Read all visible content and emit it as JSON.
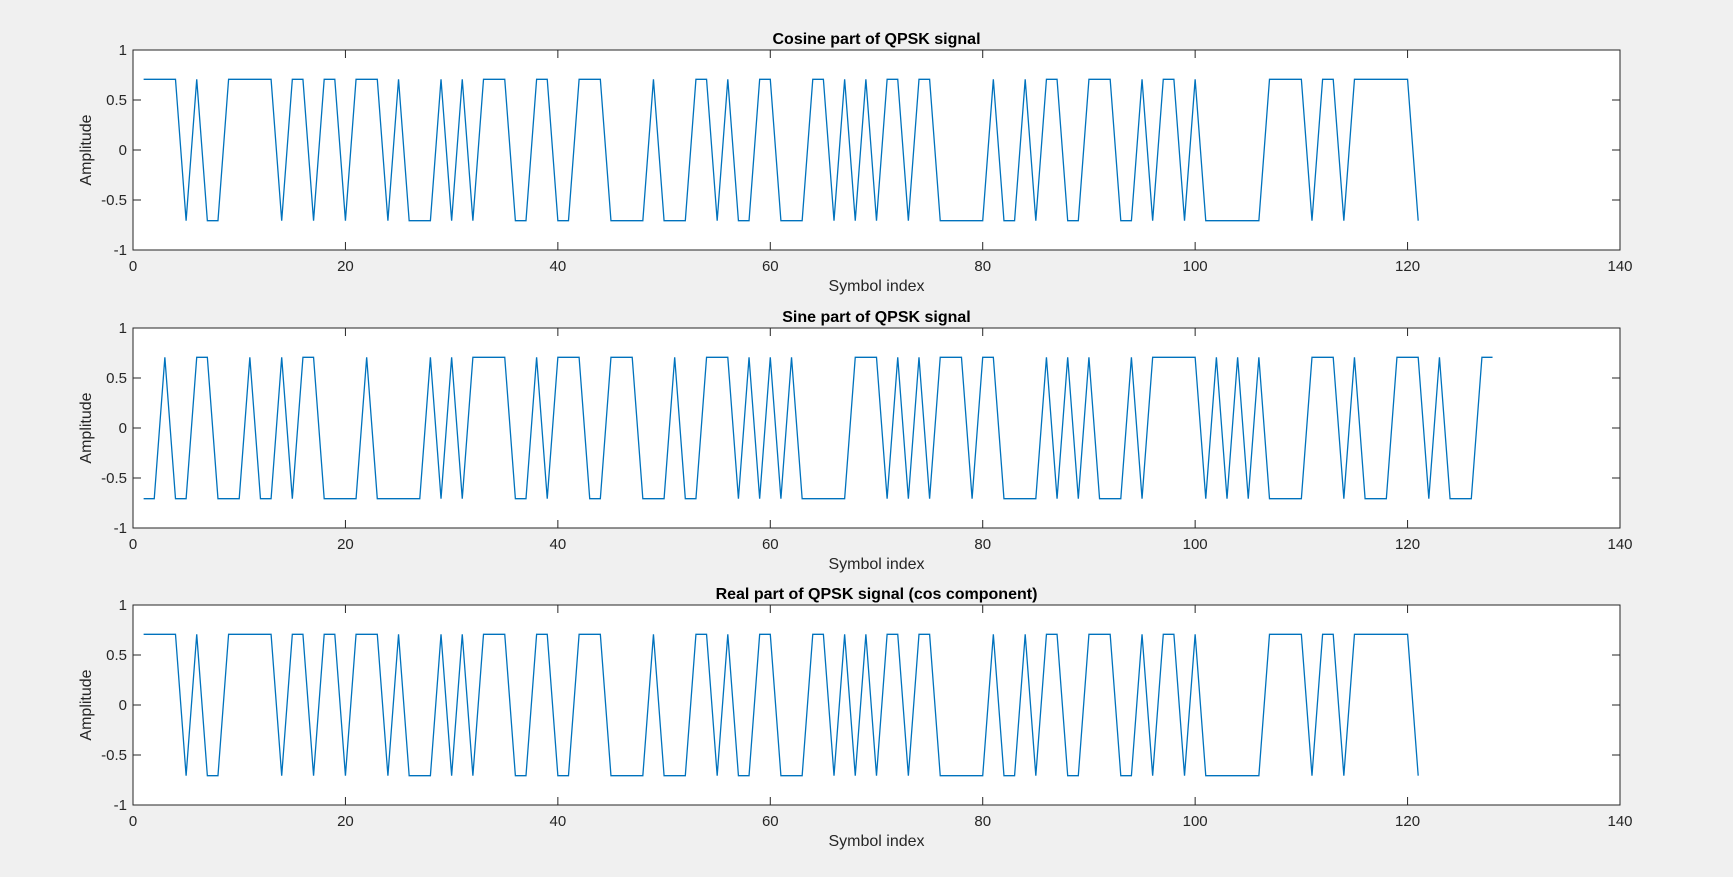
{
  "figure": {
    "background": "#f0f0f0",
    "line_color": "#0072bd"
  },
  "chart_data": [
    {
      "type": "line",
      "title": "Cosine part of QPSK signal",
      "xlabel": "Symbol index",
      "ylabel": "Amplitude",
      "xlim": [
        0,
        140
      ],
      "ylim": [
        -1,
        1
      ],
      "xticks": [
        0,
        20,
        40,
        60,
        80,
        100,
        120,
        140
      ],
      "yticks": [
        -1,
        -0.5,
        0,
        0.5,
        1
      ],
      "grid": false,
      "series": [
        {
          "x_start": 1,
          "x_step": 1,
          "values": [
            0.707,
            0.707,
            0.707,
            0.707,
            -0.707,
            0.707,
            -0.707,
            -0.707,
            0.707,
            0.707,
            0.707,
            0.707,
            0.707,
            -0.707,
            0.707,
            0.707,
            -0.707,
            0.707,
            0.707,
            -0.707,
            0.707,
            0.707,
            0.707,
            -0.707,
            0.707,
            -0.707,
            -0.707,
            -0.707,
            0.707,
            -0.707,
            0.707,
            -0.707,
            0.707,
            0.707,
            0.707,
            -0.707,
            -0.707,
            0.707,
            0.707,
            -0.707,
            -0.707,
            0.707,
            0.707,
            0.707,
            -0.707,
            -0.707,
            -0.707,
            -0.707,
            0.707,
            -0.707,
            -0.707,
            -0.707,
            0.707,
            0.707,
            -0.707,
            0.707,
            -0.707,
            -0.707,
            0.707,
            0.707,
            -0.707,
            -0.707,
            -0.707,
            0.707,
            0.707,
            -0.707,
            0.707,
            -0.707,
            0.707,
            -0.707,
            0.707,
            0.707,
            -0.707,
            0.707,
            0.707,
            -0.707,
            -0.707,
            -0.707,
            -0.707,
            -0.707,
            0.707,
            -0.707,
            -0.707,
            0.707,
            -0.707,
            0.707,
            0.707,
            -0.707,
            -0.707,
            0.707,
            0.707,
            0.707,
            -0.707,
            -0.707,
            0.707,
            -0.707,
            0.707,
            0.707,
            -0.707,
            0.707,
            -0.707,
            -0.707,
            -0.707,
            -0.707,
            -0.707,
            -0.707,
            0.707,
            0.707,
            0.707,
            0.707,
            -0.707,
            0.707,
            0.707,
            -0.707,
            0.707,
            0.707,
            0.707,
            0.707,
            0.707,
            0.707,
            -0.707
          ]
        }
      ]
    },
    {
      "type": "line",
      "title": "Sine part of QPSK signal",
      "xlabel": "Symbol index",
      "ylabel": "Amplitude",
      "xlim": [
        0,
        140
      ],
      "ylim": [
        -1,
        1
      ],
      "xticks": [
        0,
        20,
        40,
        60,
        80,
        100,
        120,
        140
      ],
      "yticks": [
        -1,
        -0.5,
        0,
        0.5,
        1
      ],
      "grid": false,
      "series": [
        {
          "x_start": 1,
          "x_step": 1,
          "values": [
            -0.707,
            -0.707,
            0.707,
            -0.707,
            -0.707,
            0.707,
            0.707,
            -0.707,
            -0.707,
            -0.707,
            0.707,
            -0.707,
            -0.707,
            0.707,
            -0.707,
            0.707,
            0.707,
            -0.707,
            -0.707,
            -0.707,
            -0.707,
            0.707,
            -0.707,
            -0.707,
            -0.707,
            -0.707,
            -0.707,
            0.707,
            -0.707,
            0.707,
            -0.707,
            0.707,
            0.707,
            0.707,
            0.707,
            -0.707,
            -0.707,
            0.707,
            -0.707,
            0.707,
            0.707,
            0.707,
            -0.707,
            -0.707,
            0.707,
            0.707,
            0.707,
            -0.707,
            -0.707,
            -0.707,
            0.707,
            -0.707,
            -0.707,
            0.707,
            0.707,
            0.707,
            -0.707,
            0.707,
            -0.707,
            0.707,
            -0.707,
            0.707,
            -0.707,
            -0.707,
            -0.707,
            -0.707,
            -0.707,
            0.707,
            0.707,
            0.707,
            -0.707,
            0.707,
            -0.707,
            0.707,
            -0.707,
            0.707,
            0.707,
            0.707,
            -0.707,
            0.707,
            0.707,
            -0.707,
            -0.707,
            -0.707,
            -0.707,
            0.707,
            -0.707,
            0.707,
            -0.707,
            0.707,
            -0.707,
            -0.707,
            -0.707,
            0.707,
            -0.707,
            0.707,
            0.707,
            0.707,
            0.707,
            0.707,
            -0.707,
            0.707,
            -0.707,
            0.707,
            -0.707,
            0.707,
            -0.707,
            -0.707,
            -0.707,
            -0.707,
            0.707,
            0.707,
            0.707,
            -0.707,
            0.707,
            -0.707,
            -0.707,
            -0.707,
            0.707,
            0.707,
            0.707,
            -0.707,
            0.707,
            -0.707,
            -0.707,
            -0.707,
            0.707,
            0.707
          ]
        }
      ]
    },
    {
      "type": "line",
      "title": "Real part of QPSK signal (cos component)",
      "xlabel": "Symbol index",
      "ylabel": "Amplitude",
      "xlim": [
        0,
        140
      ],
      "ylim": [
        -1,
        1
      ],
      "xticks": [
        0,
        20,
        40,
        60,
        80,
        100,
        120,
        140
      ],
      "yticks": [
        -1,
        -0.5,
        0,
        0.5,
        1
      ],
      "grid": false,
      "series": [
        {
          "x_start": 1,
          "x_step": 1,
          "values": [
            0.707,
            0.707,
            0.707,
            0.707,
            -0.707,
            0.707,
            -0.707,
            -0.707,
            0.707,
            0.707,
            0.707,
            0.707,
            0.707,
            -0.707,
            0.707,
            0.707,
            -0.707,
            0.707,
            0.707,
            -0.707,
            0.707,
            0.707,
            0.707,
            -0.707,
            0.707,
            -0.707,
            -0.707,
            -0.707,
            0.707,
            -0.707,
            0.707,
            -0.707,
            0.707,
            0.707,
            0.707,
            -0.707,
            -0.707,
            0.707,
            0.707,
            -0.707,
            -0.707,
            0.707,
            0.707,
            0.707,
            -0.707,
            -0.707,
            -0.707,
            -0.707,
            0.707,
            -0.707,
            -0.707,
            -0.707,
            0.707,
            0.707,
            -0.707,
            0.707,
            -0.707,
            -0.707,
            0.707,
            0.707,
            -0.707,
            -0.707,
            -0.707,
            0.707,
            0.707,
            -0.707,
            0.707,
            -0.707,
            0.707,
            -0.707,
            0.707,
            0.707,
            -0.707,
            0.707,
            0.707,
            -0.707,
            -0.707,
            -0.707,
            -0.707,
            -0.707,
            0.707,
            -0.707,
            -0.707,
            0.707,
            -0.707,
            0.707,
            0.707,
            -0.707,
            -0.707,
            0.707,
            0.707,
            0.707,
            -0.707,
            -0.707,
            0.707,
            -0.707,
            0.707,
            0.707,
            -0.707,
            0.707,
            -0.707,
            -0.707,
            -0.707,
            -0.707,
            -0.707,
            -0.707,
            0.707,
            0.707,
            0.707,
            0.707,
            -0.707,
            0.707,
            0.707,
            -0.707,
            0.707,
            0.707,
            0.707,
            0.707,
            0.707,
            0.707,
            -0.707
          ]
        }
      ]
    }
  ]
}
